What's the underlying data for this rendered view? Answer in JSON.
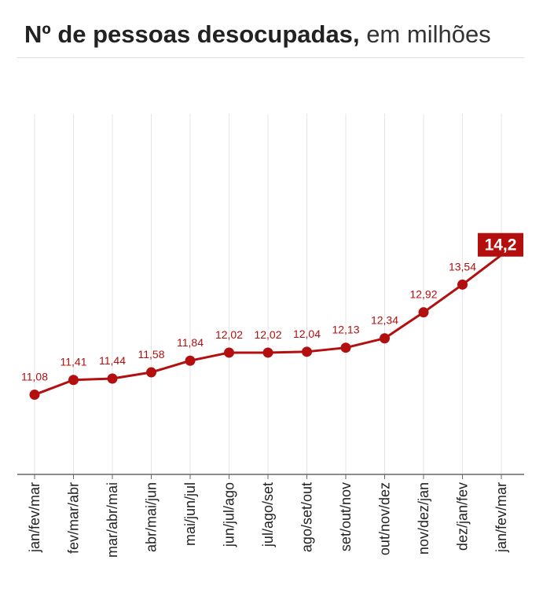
{
  "title": {
    "main": "Nº de pessoas desocupadas",
    "sep": ",",
    "unit": "em milhões"
  },
  "colors": {
    "line": "#b30f0f",
    "highlight_bg": "#b30f0f",
    "grid": "#e6e6e6",
    "axis": "#666666",
    "text": "#222222"
  },
  "chart_data": {
    "type": "line",
    "categories": [
      "jan/fev/mar",
      "fev/mar/abr",
      "mar/abr/mai",
      "abr/mai/jun",
      "mai/jun/jul",
      "jun/jul/ago",
      "jul/ago/set",
      "ago/set/out",
      "set/out/nov",
      "out/nov/dez",
      "nov/dez/jan",
      "dez/jan/fev",
      "jan/fev/mar"
    ],
    "values": [
      11.08,
      11.41,
      11.44,
      11.58,
      11.84,
      12.02,
      12.02,
      12.04,
      12.13,
      12.34,
      12.92,
      13.54,
      14.2
    ],
    "value_labels": [
      "11,08",
      "11,41",
      "11,44",
      "11,58",
      "11,84",
      "12,02",
      "12,02",
      "12,04",
      "12,13",
      "12,34",
      "12,92",
      "13,54",
      "14,2"
    ],
    "ylim": [
      9.3,
      14.2
    ],
    "grid": "vertical",
    "highlight_last": true,
    "title": "",
    "xlabel": "",
    "ylabel": ""
  }
}
